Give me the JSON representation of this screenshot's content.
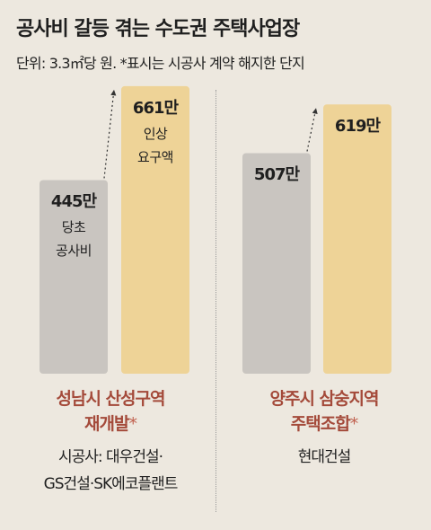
{
  "title": "공사비 갈등 겪는 수도권 주택사업장",
  "subtitle": "단위: 3.3㎡당 원. *표시는 시공사 계약 해지한 단지",
  "colors": {
    "background": "#ede8df",
    "original_bar": "#c9c5c0",
    "requested_bar": "#eed397",
    "site_name": "#a44a3a"
  },
  "sites": [
    {
      "name_line1": "성남시 산성구역",
      "name_line2": "재개발",
      "terminated_mark": "*",
      "builder_line1": "시공사: 대우건설·",
      "builder_line2": "GS건설·SK에코플랜트"
    },
    {
      "name_line1": "양주시 삼숭지역",
      "name_line2": "주택조합",
      "terminated_mark": "*",
      "builder_line1": "현대건설",
      "builder_line2": ""
    }
  ],
  "bar_labels": {
    "original_line1": "당초",
    "original_line2": "공사비",
    "requested_line1": "인상",
    "requested_line2": "요구액"
  },
  "chart_data": {
    "type": "bar",
    "unit": "만",
    "groups": [
      {
        "site": "성남시 산성구역 재개발",
        "bars": [
          {
            "label": "당초 공사비",
            "value": 445,
            "value_label": "445만"
          },
          {
            "label": "인상 요구액",
            "value": 661,
            "value_label": "661만"
          }
        ]
      },
      {
        "site": "양주시 삼숭지역 주택조합",
        "bars": [
          {
            "label": "",
            "value": 507,
            "value_label": "507만"
          },
          {
            "label": "",
            "value": 619,
            "value_label": "619만"
          }
        ]
      }
    ]
  }
}
